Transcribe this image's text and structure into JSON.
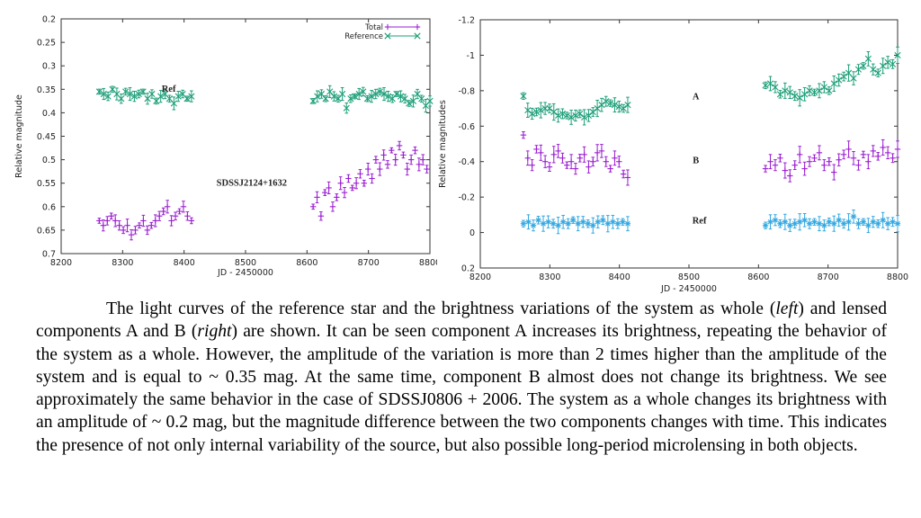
{
  "charts": [
    {
      "type": "scatter",
      "ylabel": "Relative magnitude",
      "xlabel": "JD - 2450000",
      "xlim": [
        8200,
        8800
      ],
      "ylim": [
        0.2,
        0.7
      ],
      "y_inverted": true,
      "xticks": [
        8200,
        8300,
        8400,
        8500,
        8600,
        8700,
        8800
      ],
      "yticks": [
        0.2,
        0.25,
        0.3,
        0.35,
        0.4,
        0.45,
        0.5,
        0.55,
        0.6,
        0.65,
        0.7
      ],
      "xtick_labels": [
        "8200",
        "8300",
        "8400",
        "8500",
        "8600",
        "8700",
        "8800"
      ],
      "ytick_labels": [
        "0.2",
        "0.25",
        "0.3",
        "0.35",
        "0.4",
        "0.45",
        "0.5",
        "0.55",
        "0.6",
        "0.65",
        "0.7"
      ],
      "legend": [
        "Total",
        "Reference"
      ],
      "legend_position": "top-right",
      "grid": false,
      "annotations": [
        {
          "text": "Ref",
          "x": 8375,
          "y": 0.355
        },
        {
          "text": "SDSSJ2124+1632",
          "x": 8510,
          "y": 0.555
        }
      ],
      "series": [
        {
          "name": "Total",
          "color": "#9b1fd0",
          "marker": "plus",
          "segments": [
            {
              "x0": 8262,
              "x1": 8412,
              "y": [
                0.63,
                0.64,
                0.63,
                0.62,
                0.63,
                0.64,
                0.65,
                0.64,
                0.66,
                0.65,
                0.64,
                0.63,
                0.65,
                0.64,
                0.63,
                0.62,
                0.61,
                0.6,
                0.63,
                0.62,
                0.61,
                0.6,
                0.62,
                0.63
              ]
            },
            {
              "x0": 8610,
              "x1": 8795,
              "y": [
                0.6,
                0.58,
                0.62,
                0.57,
                0.56,
                0.6,
                0.58,
                0.55,
                0.57,
                0.54,
                0.56,
                0.55,
                0.53,
                0.55,
                0.52,
                0.54,
                0.5,
                0.52,
                0.49,
                0.51,
                0.48,
                0.5,
                0.47,
                0.49,
                0.52,
                0.5,
                0.48,
                0.51,
                0.5,
                0.52
              ]
            }
          ]
        },
        {
          "name": "Reference",
          "color": "#1b9e77",
          "marker": "cross",
          "segments": [
            {
              "x0": 8262,
              "x1": 8412,
              "y": [
                0.355,
                0.36,
                0.365,
                0.35,
                0.36,
                0.37,
                0.355,
                0.36,
                0.365,
                0.36,
                0.355,
                0.37,
                0.36,
                0.375,
                0.365,
                0.36,
                0.37,
                0.38,
                0.365,
                0.36,
                0.37,
                0.365
              ]
            },
            {
              "x0": 8610,
              "x1": 8800,
              "y": [
                0.375,
                0.365,
                0.36,
                0.37,
                0.355,
                0.365,
                0.37,
                0.36,
                0.39,
                0.37,
                0.365,
                0.36,
                0.355,
                0.37,
                0.365,
                0.36,
                0.355,
                0.36,
                0.365,
                0.37,
                0.36,
                0.365,
                0.37,
                0.38,
                0.375,
                0.36,
                0.37,
                0.385,
                0.375
              ]
            }
          ]
        }
      ]
    },
    {
      "type": "scatter",
      "ylabel": "Relative magnitudes",
      "xlabel": "JD - 2450000",
      "xlim": [
        8200,
        8800
      ],
      "ylim": [
        -1.2,
        0.2
      ],
      "y_inverted": true,
      "xticks": [
        8200,
        8300,
        8400,
        8500,
        8600,
        8700,
        8800
      ],
      "yticks": [
        -1.2,
        -1,
        -0.8,
        -0.6,
        -0.4,
        -0.2,
        0,
        0.2
      ],
      "xtick_labels": [
        "8200",
        "8300",
        "8400",
        "8500",
        "8600",
        "8700",
        "8800"
      ],
      "ytick_labels": [
        "-1.2",
        "-1",
        "-0.8",
        "-0.6",
        "-0.4",
        "-0.2",
        "0",
        "0.2"
      ],
      "grid": false,
      "annotations": [
        {
          "text": "A",
          "x": 8510,
          "y": -0.75
        },
        {
          "text": "B",
          "x": 8510,
          "y": -0.39
        },
        {
          "text": "Ref",
          "x": 8515,
          "y": -0.05
        }
      ],
      "series": [
        {
          "name": "A",
          "color": "#1b9e77",
          "marker": "cross",
          "segments": [
            {
              "x0": 8262,
              "x1": 8412,
              "y": [
                -0.77,
                -0.69,
                -0.67,
                -0.68,
                -0.69,
                -0.7,
                -0.7,
                -0.68,
                -0.66,
                -0.67,
                -0.66,
                -0.65,
                -0.66,
                -0.67,
                -0.65,
                -0.66,
                -0.68,
                -0.7,
                -0.72,
                -0.74,
                -0.73,
                -0.72,
                -0.71,
                -0.7,
                -0.72
              ]
            },
            {
              "x0": 8610,
              "x1": 8800,
              "y": [
                -0.83,
                -0.84,
                -0.82,
                -0.78,
                -0.8,
                -0.79,
                -0.77,
                -0.76,
                -0.78,
                -0.8,
                -0.79,
                -0.8,
                -0.82,
                -0.8,
                -0.84,
                -0.86,
                -0.88,
                -0.9,
                -0.87,
                -0.92,
                -0.94,
                -0.98,
                -0.92,
                -0.9,
                -0.94,
                -0.96,
                -0.95,
                -1.0
              ]
            }
          ]
        },
        {
          "name": "B",
          "color": "#9b1fd0",
          "marker": "plus",
          "segments": [
            {
              "x0": 8262,
              "x1": 8412,
              "y": [
                -0.55,
                -0.42,
                -0.38,
                -0.47,
                -0.45,
                -0.4,
                -0.37,
                -0.44,
                -0.46,
                -0.42,
                -0.38,
                -0.4,
                -0.36,
                -0.42,
                -0.44,
                -0.37,
                -0.4,
                -0.45,
                -0.46,
                -0.4,
                -0.36,
                -0.42,
                -0.4,
                -0.33,
                -0.31
              ]
            },
            {
              "x0": 8610,
              "x1": 8800,
              "y": [
                -0.36,
                -0.4,
                -0.38,
                -0.42,
                -0.35,
                -0.32,
                -0.38,
                -0.44,
                -0.36,
                -0.4,
                -0.42,
                -0.45,
                -0.38,
                -0.4,
                -0.34,
                -0.41,
                -0.44,
                -0.47,
                -0.42,
                -0.38,
                -0.44,
                -0.4,
                -0.46,
                -0.43,
                -0.48,
                -0.45,
                -0.42,
                -0.47
              ]
            }
          ]
        },
        {
          "name": "Ref",
          "color": "#33a8e0",
          "marker": "star",
          "segments": [
            {
              "x0": 8262,
              "x1": 8412,
              "y": [
                -0.05,
                -0.06,
                -0.04,
                -0.07,
                -0.05,
                -0.06,
                -0.05,
                -0.04,
                -0.06,
                -0.05,
                -0.07,
                -0.05,
                -0.06,
                -0.05,
                -0.04,
                -0.06,
                -0.07,
                -0.05,
                -0.06,
                -0.05,
                -0.06,
                -0.05
              ]
            },
            {
              "x0": 8610,
              "x1": 8800,
              "y": [
                -0.04,
                -0.06,
                -0.07,
                -0.05,
                -0.06,
                -0.04,
                -0.05,
                -0.06,
                -0.07,
                -0.05,
                -0.06,
                -0.05,
                -0.04,
                -0.06,
                -0.05,
                -0.07,
                -0.05,
                -0.06,
                -0.09,
                -0.05,
                -0.06,
                -0.04,
                -0.06,
                -0.05,
                -0.07,
                -0.05,
                -0.06,
                -0.05
              ]
            }
          ]
        }
      ]
    }
  ],
  "caption": {
    "part1": "The light curves of the reference star and the brightness variations of the system as whole (",
    "left_word": "left",
    "part2": ") and lensed components A and B (",
    "right_word": "right",
    "part3": ") are shown. It can be seen component A increases its brightness, repeating the behavior of the system as a whole. However, the amplitude of the variation is more than 2 times higher than the amplitude of the system and is equal to ~ 0.35 mag. At the same time, component B almost does not change its brightness. We see approximately the same behavior in the case of SDSSJ0806 + 2006. The system as a whole changes its brightness with an amplitude of ~ 0.2 mag, but the magnitude difference between the two components changes with time. This indicates the presence of not only internal variability of the source, but also possible long-period microlensing in both objects."
  }
}
